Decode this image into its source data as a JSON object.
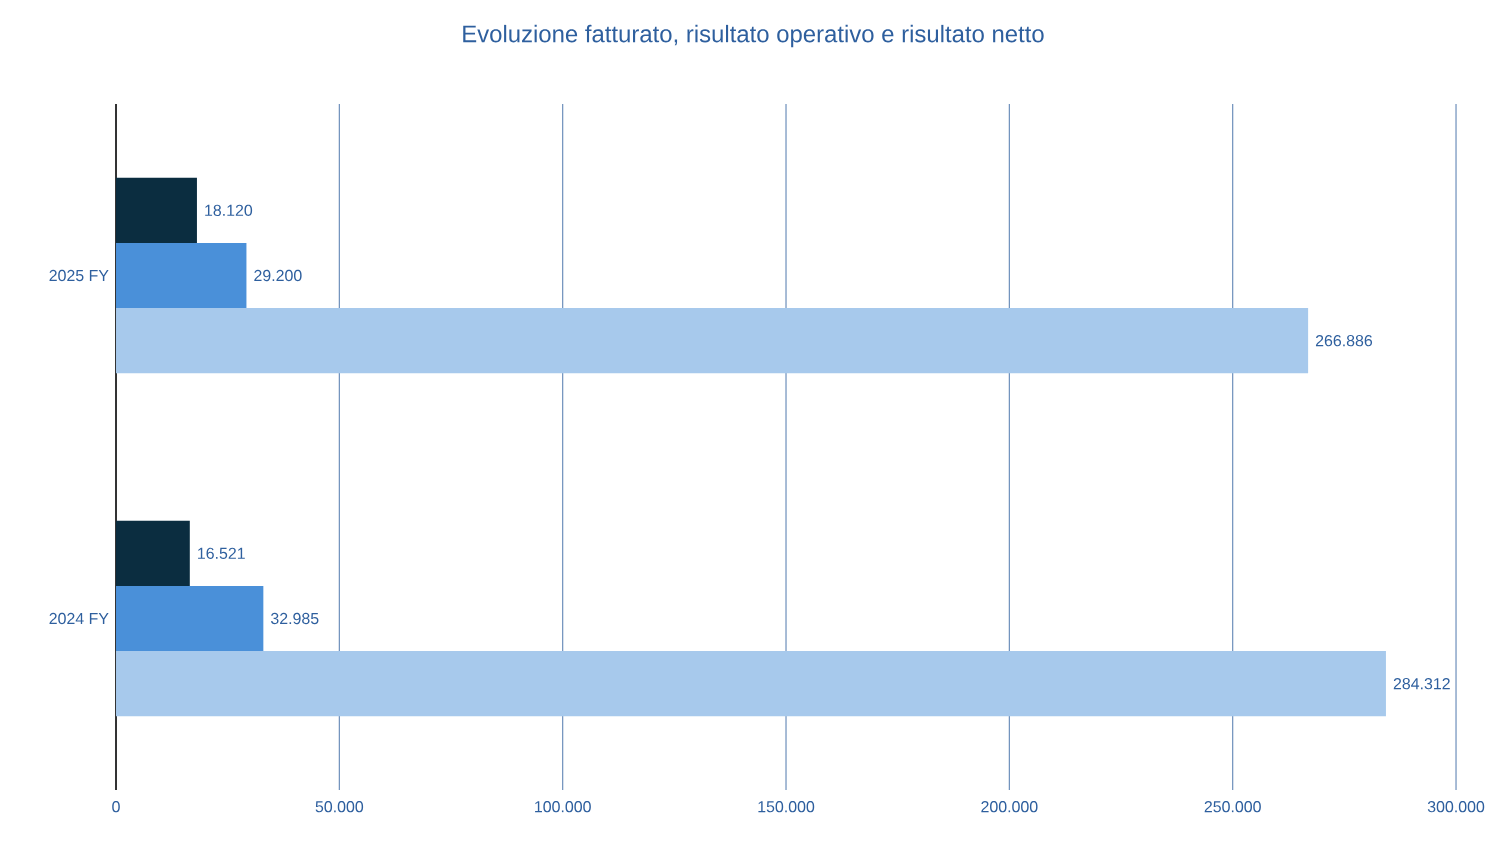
{
  "chart_data": {
    "type": "bar",
    "orientation": "horizontal",
    "title": "Evoluzione fatturato, risultato operativo e risultato netto",
    "categories": [
      "2025 FY",
      "2024 FY"
    ],
    "series": [
      {
        "color": "#0b2d40",
        "values": [
          18120,
          16521
        ],
        "value_labels": [
          "18.120",
          "16.521"
        ]
      },
      {
        "color": "#4a90d9",
        "values": [
          29200,
          32985
        ],
        "value_labels": [
          "29.200",
          "32.985"
        ]
      },
      {
        "color": "#a7c9ec",
        "values": [
          266886,
          284312
        ],
        "value_labels": [
          "266.886",
          "284.312"
        ]
      }
    ],
    "xlim": [
      0,
      300000
    ],
    "xticks": [
      0,
      {
        "value": 50000,
        "label": "50.000"
      },
      {
        "value": 100000,
        "label": "100.000"
      },
      {
        "value": 150000,
        "label": "150.000"
      },
      {
        "value": 200000,
        "label": "200.000"
      },
      {
        "value": 250000,
        "label": "250.000"
      },
      {
        "value": 300000,
        "label": "300.000"
      }
    ],
    "grid": "x"
  }
}
